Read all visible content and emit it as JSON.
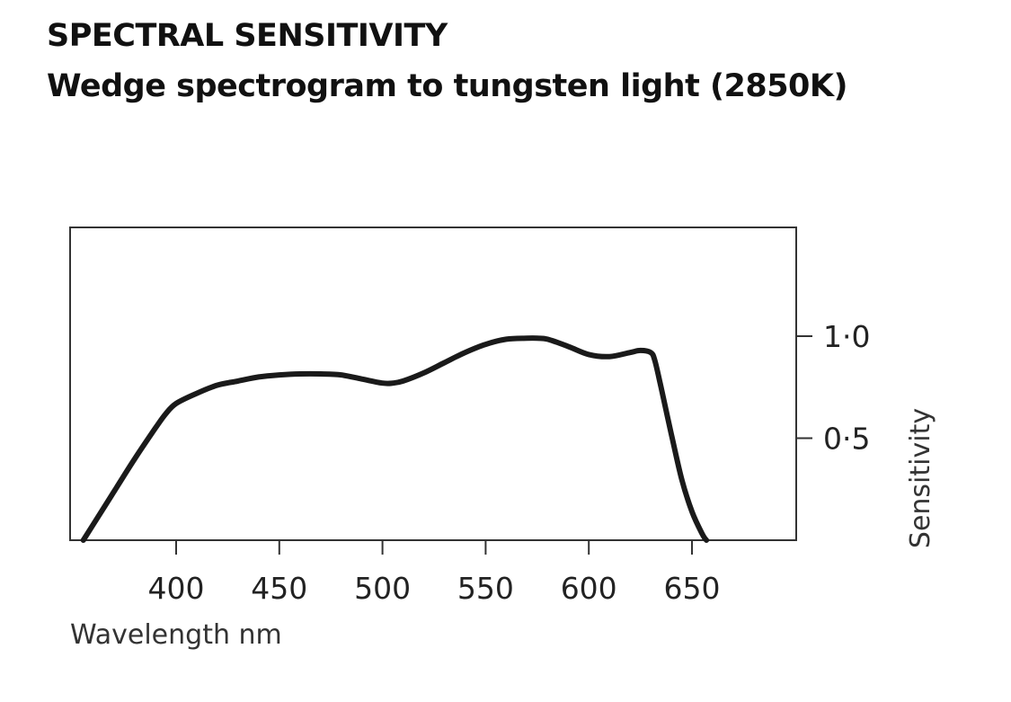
{
  "title": "SPECTRAL SENSITIVITY",
  "subtitle": "Wedge spectrogram to tungsten light (2850K)",
  "chart_data": {
    "type": "line",
    "title": "SPECTRAL SENSITIVITY",
    "subtitle": "Wedge spectrogram to tungsten light (2850K)",
    "xlabel": "Wavelength nm",
    "ylabel": "Sensitivity",
    "xlim": [
      350,
      700
    ],
    "ylim": [
      0,
      1.5
    ],
    "x_ticks": [
      400,
      450,
      500,
      550,
      600,
      650
    ],
    "x_tick_labels": [
      "400",
      "450",
      "500",
      "550",
      "600",
      "650"
    ],
    "y_ticks": [
      0.5,
      1.0
    ],
    "y_tick_labels": [
      "0·5",
      "1·0"
    ],
    "y_axis_side": "right",
    "grid": false,
    "legend": "none",
    "series": [
      {
        "x": [
          355,
          360,
          370,
          380,
          390,
          395,
          400,
          410,
          420,
          430,
          440,
          450,
          460,
          470,
          480,
          490,
          500,
          505,
          510,
          520,
          530,
          540,
          550,
          560,
          570,
          575,
          580,
          590,
          600,
          610,
          620,
          625,
          630,
          632,
          635,
          640,
          645,
          650,
          655,
          657
        ],
        "y": [
          0.0,
          0.08,
          0.24,
          0.4,
          0.55,
          0.62,
          0.67,
          0.72,
          0.76,
          0.78,
          0.8,
          0.81,
          0.815,
          0.815,
          0.81,
          0.79,
          0.77,
          0.77,
          0.78,
          0.82,
          0.87,
          0.92,
          0.96,
          0.985,
          0.99,
          0.99,
          0.985,
          0.95,
          0.91,
          0.9,
          0.92,
          0.93,
          0.92,
          0.88,
          0.75,
          0.52,
          0.3,
          0.14,
          0.03,
          0.0
        ]
      }
    ]
  }
}
